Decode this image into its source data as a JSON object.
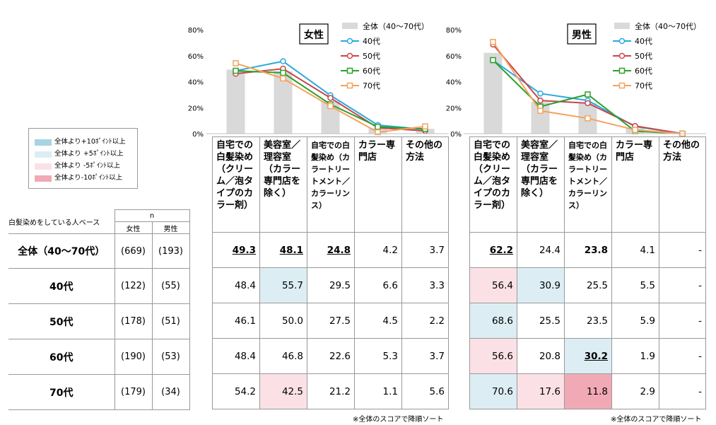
{
  "legend_colors": {
    "total": "#d9d9d9",
    "s40": "#29a9e0",
    "s50": "#c8474a",
    "s60": "#2ca02c",
    "s70": "#f5a25d"
  },
  "highlight_key": [
    {
      "label": "全体より+10ﾎﾟｲﾝﾄ以上",
      "color": "#a5d4e3"
    },
    {
      "label": "全体より +5ﾎﾟｲﾝﾄ以上",
      "color": "#dceef4"
    },
    {
      "label": "全体より -5ﾎﾟｲﾝﾄ以上",
      "color": "#fbe1e6"
    },
    {
      "label": "全体より-10ﾎﾟｲﾝﾄ以上",
      "color": "#f2a9b6"
    }
  ],
  "sample_table": {
    "base_label": "白髪染めをしている人ベース",
    "n_header": "n",
    "col_female": "女性",
    "col_male": "男性",
    "rows": [
      {
        "label": "全体（40～70代）",
        "female": "(669)",
        "male": "(193)"
      },
      {
        "label": "40代",
        "female": "(122)",
        "male": "(55)"
      },
      {
        "label": "50代",
        "female": "(178)",
        "male": "(51)"
      },
      {
        "label": "60代",
        "female": "(190)",
        "male": "(53)"
      },
      {
        "label": "70代",
        "female": "(179)",
        "male": "(34)"
      }
    ]
  },
  "column_headers": [
    "自宅での白髪染め（クリーム／泡タイプのカラー剤）",
    "美容室／理容室（カラー専門店を除く）",
    "自宅での白髪染め（カラートリートメント／カラーリンス）",
    "カラー専門店",
    "その他の方法"
  ],
  "female_table": [
    [
      "49.3",
      "48.1",
      "24.8",
      "4.2",
      "3.7"
    ],
    [
      "48.4",
      "55.7",
      "29.5",
      "6.6",
      "3.3"
    ],
    [
      "46.1",
      "50.0",
      "27.5",
      "4.5",
      "2.2"
    ],
    [
      "48.4",
      "46.8",
      "22.6",
      "5.3",
      "3.7"
    ],
    [
      "54.2",
      "42.5",
      "21.2",
      "1.1",
      "5.6"
    ]
  ],
  "male_table": [
    [
      "62.2",
      "24.4",
      "23.8",
      "4.1",
      "-"
    ],
    [
      "56.4",
      "30.9",
      "25.5",
      "5.5",
      "-"
    ],
    [
      "68.6",
      "25.5",
      "23.5",
      "5.9",
      "-"
    ],
    [
      "56.6",
      "20.8",
      "30.2",
      "1.9",
      "-"
    ],
    [
      "70.6",
      "17.6",
      "11.8",
      "2.9",
      "-"
    ]
  ],
  "note": "※全体のスコアで降順ソート",
  "chart_data": [
    {
      "type": "bar",
      "title": "女性",
      "categories": [
        "自宅での白髪染め（クリーム／泡タイプのカラー剤）",
        "美容室／理容室（カラー専門店を除く）",
        "自宅での白髪染め（カラートリートメント／カラーリンス）",
        "カラー専門店",
        "その他の方法"
      ],
      "ylim": [
        0,
        80
      ],
      "yticks": [
        "0%",
        "20%",
        "40%",
        "60%",
        "80%"
      ],
      "legend_position": "top-right",
      "series": [
        {
          "name": "全体（40～70代）",
          "kind": "bar",
          "values": [
            49.3,
            48.1,
            24.8,
            4.2,
            3.7
          ]
        },
        {
          "name": "40代",
          "kind": "line",
          "values": [
            48.4,
            55.7,
            29.5,
            6.6,
            3.3
          ]
        },
        {
          "name": "50代",
          "kind": "line",
          "values": [
            46.1,
            50.0,
            27.5,
            4.5,
            2.2
          ]
        },
        {
          "name": "60代",
          "kind": "line",
          "values": [
            48.4,
            46.8,
            22.6,
            5.3,
            3.7
          ]
        },
        {
          "name": "70代",
          "kind": "line",
          "values": [
            54.2,
            42.5,
            21.2,
            1.1,
            5.6
          ]
        }
      ]
    },
    {
      "type": "bar",
      "title": "男性",
      "categories": [
        "自宅での白髪染め（クリーム／泡タイプのカラー剤）",
        "美容室／理容室（カラー専門店を除く）",
        "自宅での白髪染め（カラートリートメント／カラーリンス）",
        "カラー専門店",
        "その他の方法"
      ],
      "ylim": [
        0,
        80
      ],
      "yticks": [
        "0%",
        "20%",
        "40%",
        "60%",
        "80%"
      ],
      "legend_position": "top-right",
      "series": [
        {
          "name": "全体（40～70代）",
          "kind": "bar",
          "values": [
            62.2,
            24.4,
            23.8,
            4.1,
            0
          ]
        },
        {
          "name": "40代",
          "kind": "line",
          "values": [
            56.4,
            30.9,
            25.5,
            5.5,
            0
          ]
        },
        {
          "name": "50代",
          "kind": "line",
          "values": [
            68.6,
            25.5,
            23.5,
            5.9,
            0
          ]
        },
        {
          "name": "60代",
          "kind": "line",
          "values": [
            56.6,
            20.8,
            30.2,
            1.9,
            0
          ]
        },
        {
          "name": "70代",
          "kind": "line",
          "values": [
            70.6,
            17.6,
            11.8,
            2.9,
            0
          ]
        }
      ]
    }
  ]
}
